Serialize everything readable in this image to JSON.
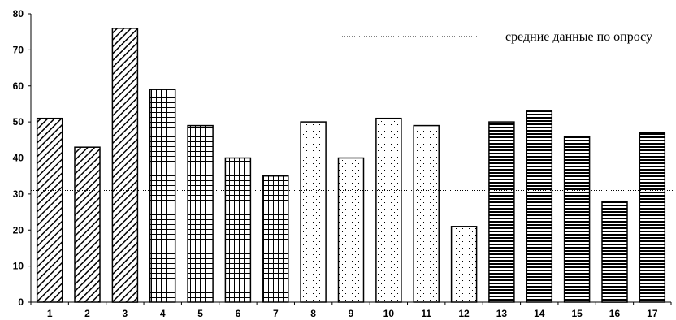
{
  "chart_data": {
    "type": "bar",
    "categories": [
      "1",
      "2",
      "3",
      "4",
      "5",
      "6",
      "7",
      "8",
      "9",
      "10",
      "11",
      "12",
      "13",
      "14",
      "15",
      "16",
      "17"
    ],
    "values": [
      51,
      43,
      76,
      59,
      49,
      40,
      35,
      50,
      40,
      51,
      49,
      21,
      50,
      53,
      46,
      28,
      47
    ],
    "patterns": [
      "diagonal",
      "diagonal",
      "diagonal",
      "grid",
      "grid",
      "grid",
      "grid",
      "dots",
      "dots",
      "dots",
      "dots",
      "dots",
      "horizontal",
      "horizontal",
      "horizontal",
      "horizontal",
      "horizontal"
    ],
    "ylim": [
      0,
      80
    ],
    "yticks": [
      0,
      10,
      20,
      30,
      40,
      50,
      60,
      70,
      80
    ],
    "reference_line": {
      "value": 31,
      "label": "средние данные по опросу",
      "style": "dotted"
    },
    "legend_position": "top-right",
    "grid": false,
    "title": "",
    "xlabel": "",
    "ylabel": ""
  }
}
